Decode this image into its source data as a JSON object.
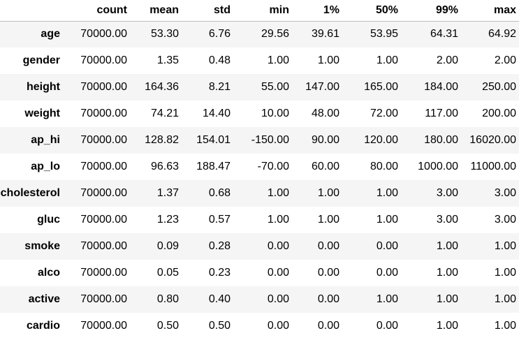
{
  "table": {
    "index_header": "",
    "columns": [
      "count",
      "mean",
      "std",
      "min",
      "1%",
      "50%",
      "99%",
      "max"
    ],
    "rows": [
      {
        "label": "age",
        "values": [
          "70000.00",
          "53.30",
          "6.76",
          "29.56",
          "39.61",
          "53.95",
          "64.31",
          "64.92"
        ]
      },
      {
        "label": "gender",
        "values": [
          "70000.00",
          "1.35",
          "0.48",
          "1.00",
          "1.00",
          "1.00",
          "2.00",
          "2.00"
        ]
      },
      {
        "label": "height",
        "values": [
          "70000.00",
          "164.36",
          "8.21",
          "55.00",
          "147.00",
          "165.00",
          "184.00",
          "250.00"
        ]
      },
      {
        "label": "weight",
        "values": [
          "70000.00",
          "74.21",
          "14.40",
          "10.00",
          "48.00",
          "72.00",
          "117.00",
          "200.00"
        ]
      },
      {
        "label": "ap_hi",
        "values": [
          "70000.00",
          "128.82",
          "154.01",
          "-150.00",
          "90.00",
          "120.00",
          "180.00",
          "16020.00"
        ]
      },
      {
        "label": "ap_lo",
        "values": [
          "70000.00",
          "96.63",
          "188.47",
          "-70.00",
          "60.00",
          "80.00",
          "1000.00",
          "11000.00"
        ]
      },
      {
        "label": "cholesterol",
        "values": [
          "70000.00",
          "1.37",
          "0.68",
          "1.00",
          "1.00",
          "1.00",
          "3.00",
          "3.00"
        ]
      },
      {
        "label": "gluc",
        "values": [
          "70000.00",
          "1.23",
          "0.57",
          "1.00",
          "1.00",
          "1.00",
          "3.00",
          "3.00"
        ]
      },
      {
        "label": "smoke",
        "values": [
          "70000.00",
          "0.09",
          "0.28",
          "0.00",
          "0.00",
          "0.00",
          "1.00",
          "1.00"
        ]
      },
      {
        "label": "alco",
        "values": [
          "70000.00",
          "0.05",
          "0.23",
          "0.00",
          "0.00",
          "0.00",
          "1.00",
          "1.00"
        ]
      },
      {
        "label": "active",
        "values": [
          "70000.00",
          "0.80",
          "0.40",
          "0.00",
          "0.00",
          "1.00",
          "1.00",
          "1.00"
        ]
      },
      {
        "label": "cardio",
        "values": [
          "70000.00",
          "0.50",
          "0.50",
          "0.00",
          "0.00",
          "0.00",
          "1.00",
          "1.00"
        ]
      }
    ]
  }
}
